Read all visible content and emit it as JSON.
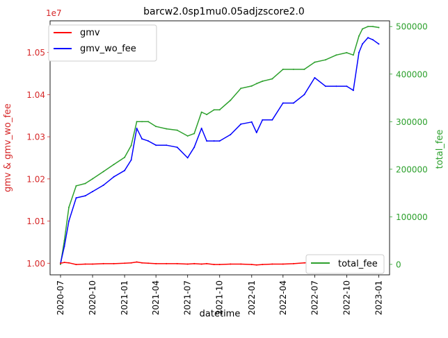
{
  "chart_data": {
    "type": "line",
    "title": "barcw2.0sp1mu0.05adjzscore2.0",
    "xlabel": "datetime",
    "ylabel_left": "gmv & gmv_wo_fee",
    "ylabel_right": "total_fee",
    "left_offset_text": "1e7",
    "xlim": [
      "2020-06-01",
      "2023-02-01"
    ],
    "ylim_left": [
      9.9725,
      10.575
    ],
    "ylim_right": [
      -22000,
      512000
    ],
    "x_ticks": [
      "2020-07",
      "2020-10",
      "2021-01",
      "2021-04",
      "2021-07",
      "2021-10",
      "2022-01",
      "2022-04",
      "2022-07",
      "2022-10",
      "2023-01"
    ],
    "y_ticks_left": [
      {
        "value": 10.0,
        "label": "1.00"
      },
      {
        "value": 10.1,
        "label": "1.01"
      },
      {
        "value": 10.2,
        "label": "1.02"
      },
      {
        "value": 10.3,
        "label": "1.03"
      },
      {
        "value": 10.4,
        "label": "1.04"
      },
      {
        "value": 10.5,
        "label": "1.05"
      }
    ],
    "y_ticks_right": [
      {
        "value": 0,
        "label": "0"
      },
      {
        "value": 100000,
        "label": "100000"
      },
      {
        "value": 200000,
        "label": "200000"
      },
      {
        "value": 300000,
        "label": "300000"
      },
      {
        "value": 400000,
        "label": "400000"
      },
      {
        "value": 500000,
        "label": "500000"
      }
    ],
    "grid": false,
    "legend_left_placement": "upper-left",
    "legend_right_placement": "lower-right",
    "colors": {
      "gmv": "#ff0000",
      "gmv_wo_fee": "#0000ff",
      "total_fee": "#2ca02c",
      "left_axis": "#d62728",
      "right_axis": "#2ca02c",
      "frame": "#000000"
    },
    "series": [
      {
        "name": "gmv",
        "axis": "left",
        "unit_scale": "1e7",
        "x": [
          "2020-07-01",
          "2020-07-12",
          "2020-07-25",
          "2020-08-15",
          "2020-09-10",
          "2020-10-01",
          "2020-11-01",
          "2020-12-01",
          "2021-01-01",
          "2021-01-20",
          "2021-02-05",
          "2021-02-20",
          "2021-03-10",
          "2021-04-01",
          "2021-05-01",
          "2021-06-01",
          "2021-07-01",
          "2021-07-20",
          "2021-08-10",
          "2021-08-25",
          "2021-09-15",
          "2021-10-01",
          "2021-11-01",
          "2021-12-01",
          "2022-01-01",
          "2022-01-15",
          "2022-02-01",
          "2022-03-01",
          "2022-04-01",
          "2022-05-01",
          "2022-06-01",
          "2022-07-01",
          "2022-08-01",
          "2022-09-01",
          "2022-10-01",
          "2022-10-20",
          "2022-11-05",
          "2022-11-15",
          "2022-12-01",
          "2022-12-15",
          "2023-01-01"
        ],
        "values": [
          10.0,
          10.002,
          10.001,
          9.997,
          9.998,
          9.998,
          9.999,
          9.999,
          10.0,
          10.001,
          10.003,
          10.001,
          10.0,
          9.999,
          9.999,
          9.999,
          9.998,
          9.999,
          9.998,
          9.999,
          9.997,
          9.997,
          9.998,
          9.998,
          9.997,
          9.996,
          9.997,
          9.998,
          9.998,
          9.999,
          10.001,
          10.002,
          10.001,
          10.0,
          9.999,
          9.998,
          10.001,
          10.003,
          10.005,
          10.005,
          10.004
        ]
      },
      {
        "name": "gmv_wo_fee",
        "axis": "left",
        "unit_scale": "1e7",
        "x": [
          "2020-07-01",
          "2020-07-12",
          "2020-07-25",
          "2020-08-15",
          "2020-09-10",
          "2020-10-01",
          "2020-11-01",
          "2020-12-01",
          "2021-01-01",
          "2021-01-20",
          "2021-02-05",
          "2021-02-20",
          "2021-03-10",
          "2021-04-01",
          "2021-05-01",
          "2021-06-01",
          "2021-07-01",
          "2021-07-20",
          "2021-08-10",
          "2021-08-25",
          "2021-09-15",
          "2021-10-01",
          "2021-11-01",
          "2021-12-01",
          "2022-01-01",
          "2022-01-15",
          "2022-02-01",
          "2022-03-01",
          "2022-04-01",
          "2022-05-01",
          "2022-06-01",
          "2022-07-01",
          "2022-08-01",
          "2022-09-01",
          "2022-10-01",
          "2022-10-20",
          "2022-11-05",
          "2022-11-15",
          "2022-12-01",
          "2022-12-15",
          "2023-01-01"
        ],
        "values": [
          10.0,
          10.04,
          10.1,
          10.155,
          10.16,
          10.17,
          10.185,
          10.205,
          10.22,
          10.245,
          10.32,
          10.295,
          10.29,
          10.28,
          10.28,
          10.275,
          10.25,
          10.275,
          10.32,
          10.29,
          10.29,
          10.29,
          10.305,
          10.33,
          10.335,
          10.31,
          10.34,
          10.34,
          10.38,
          10.38,
          10.4,
          10.44,
          10.42,
          10.42,
          10.42,
          10.41,
          10.5,
          10.52,
          10.535,
          10.53,
          10.52
        ]
      },
      {
        "name": "total_fee",
        "axis": "right",
        "x": [
          "2020-07-01",
          "2020-07-12",
          "2020-07-25",
          "2020-08-15",
          "2020-09-10",
          "2020-10-01",
          "2020-11-01",
          "2020-12-01",
          "2021-01-01",
          "2021-01-20",
          "2021-02-05",
          "2021-02-20",
          "2021-03-10",
          "2021-04-01",
          "2021-05-01",
          "2021-06-01",
          "2021-07-01",
          "2021-07-20",
          "2021-08-10",
          "2021-08-25",
          "2021-09-15",
          "2021-10-01",
          "2021-11-01",
          "2021-12-01",
          "2022-01-01",
          "2022-01-15",
          "2022-02-01",
          "2022-03-01",
          "2022-04-01",
          "2022-05-01",
          "2022-06-01",
          "2022-07-01",
          "2022-08-01",
          "2022-09-01",
          "2022-10-01",
          "2022-10-20",
          "2022-11-05",
          "2022-11-15",
          "2022-12-01",
          "2022-12-15",
          "2023-01-01"
        ],
        "values": [
          0,
          50000,
          120000,
          165000,
          170000,
          180000,
          195000,
          210000,
          225000,
          250000,
          300000,
          300000,
          300000,
          290000,
          285000,
          282000,
          270000,
          275000,
          320000,
          315000,
          325000,
          325000,
          345000,
          370000,
          375000,
          380000,
          385000,
          390000,
          410000,
          410000,
          410000,
          425000,
          430000,
          440000,
          445000,
          440000,
          480000,
          495000,
          500000,
          500000,
          498000
        ]
      }
    ]
  }
}
